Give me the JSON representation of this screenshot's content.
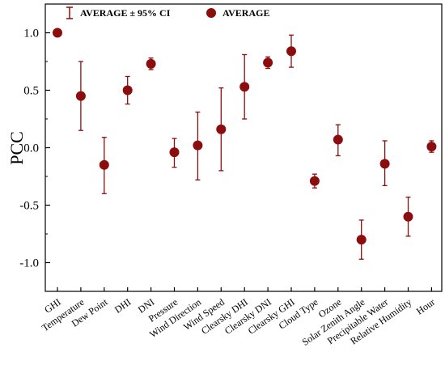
{
  "chart_data": {
    "type": "scatter",
    "ylabel": "PCC",
    "xlabel": "",
    "ylim": [
      -1.25,
      1.25
    ],
    "yticks": [
      -1.0,
      -0.5,
      0.0,
      0.5,
      1.0
    ],
    "ytick_labels": [
      "-1.0",
      "-0.5",
      "0.0",
      "0.5",
      "1.0"
    ],
    "grid": false,
    "legend_position": "top",
    "colors": {
      "marker": "#8b0d0d",
      "axis": "#000000"
    },
    "categories": [
      "GHI",
      "Temperature",
      "Dew Point",
      "DHI",
      "DNI",
      "Pressure",
      "Wind Direction",
      "Wind Speed",
      "Clearsky DHI",
      "Clearsky DNI",
      "Clearsky GHI",
      "Cloud Type",
      "Ozone",
      "Solar Zenith Angle",
      "Precipitable Water",
      "Relative Humidity",
      "Hour"
    ],
    "series": [
      {
        "name": "AVERAGE",
        "values": [
          1.0,
          0.45,
          -0.15,
          0.5,
          0.73,
          -0.04,
          0.02,
          0.16,
          0.53,
          0.74,
          0.84,
          -0.29,
          0.07,
          -0.8,
          -0.14,
          -0.6,
          0.01
        ]
      },
      {
        "name": "AVERAGE ± 95% CI",
        "lower": [
          1.0,
          0.15,
          -0.4,
          0.38,
          0.68,
          -0.17,
          -0.28,
          -0.2,
          0.25,
          0.69,
          0.7,
          -0.35,
          -0.07,
          -0.97,
          -0.33,
          -0.77,
          -0.04
        ],
        "upper": [
          1.0,
          0.75,
          0.09,
          0.62,
          0.78,
          0.08,
          0.31,
          0.52,
          0.81,
          0.79,
          0.98,
          -0.23,
          0.2,
          -0.63,
          0.06,
          -0.43,
          0.06
        ]
      }
    ]
  }
}
